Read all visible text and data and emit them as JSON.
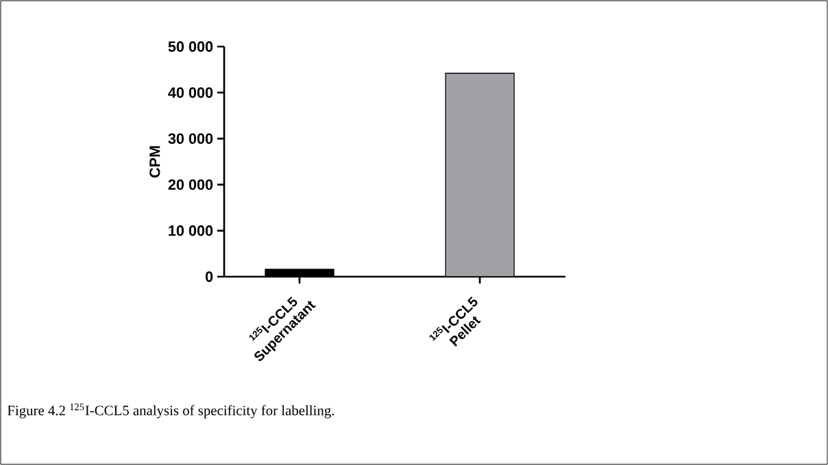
{
  "chart_data": {
    "type": "bar",
    "categories": [
      "$^{125}$I-CCL5 Supernatant",
      "$^{125}$I-CCL5 Pellet"
    ],
    "values": [
      1600,
      44200
    ],
    "colors": [
      "#000000",
      "#a2a1a6"
    ],
    "ylabel": "CPM",
    "ylim": [
      0,
      50000
    ],
    "yticks": [
      0,
      {
        "value": 10000,
        "label": "10 000"
      },
      {
        "value": 20000,
        "label": "20 000"
      },
      {
        "value": 30000,
        "label": "30 000"
      },
      {
        "value": 40000,
        "label": "40 000"
      },
      {
        "value": 50000,
        "label": "50 000"
      }
    ],
    "annotations": [
      "Figure 4.2 $^{125}$I-CCL5 analysis of specificity for labelling."
    ]
  }
}
